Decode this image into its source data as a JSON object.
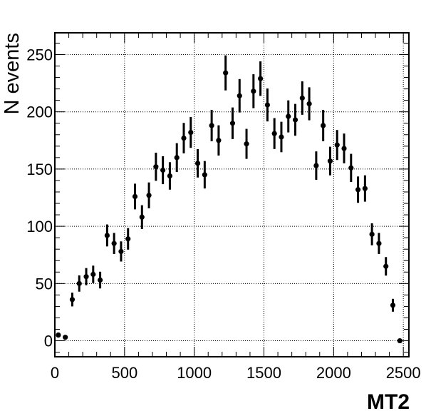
{
  "chart_data": {
    "type": "scatter",
    "xlabel": "MT2",
    "ylabel": "N events",
    "xlim": [
      0,
      2540
    ],
    "ylim": [
      -14,
      269
    ],
    "grid": true,
    "x_ticks": [
      0,
      500,
      1000,
      1500,
      2000,
      2500
    ],
    "x_tick_labels": [
      "0",
      "500",
      "1000",
      "1500",
      "2000",
      "2500"
    ],
    "y_ticks": [
      0,
      50,
      100,
      150,
      200,
      250
    ],
    "y_tick_labels": [
      "0",
      "50",
      "100",
      "150",
      "200",
      "250"
    ],
    "marker_color": "#000000",
    "series": [
      {
        "x": [
          25,
          75,
          125,
          175,
          225,
          275,
          325,
          375,
          425,
          475,
          525,
          575,
          625,
          675,
          725,
          775,
          825,
          875,
          925,
          975,
          1025,
          1075,
          1125,
          1175,
          1225,
          1275,
          1325,
          1375,
          1425,
          1475,
          1525,
          1575,
          1625,
          1675,
          1725,
          1775,
          1825,
          1875,
          1925,
          1975,
          2025,
          2075,
          2125,
          2175,
          2225,
          2275,
          2325,
          2375,
          2425,
          2475
        ],
        "y": [
          5,
          3,
          36,
          50,
          56,
          58,
          53,
          92,
          85,
          78,
          89,
          126,
          108,
          127,
          152,
          149,
          144,
          160,
          177,
          182,
          155,
          145,
          188,
          175,
          234,
          190,
          214,
          172,
          218,
          229,
          206,
          181,
          178,
          196,
          193,
          212,
          207,
          153,
          188,
          157,
          171,
          168,
          151,
          132,
          133,
          93,
          85,
          65,
          31,
          0
        ],
        "err": [
          2.2,
          1.7,
          6,
          7.1,
          7.5,
          7.6,
          7.3,
          9.6,
          9.2,
          8.8,
          9.4,
          11.2,
          10.4,
          11.3,
          12.3,
          12.2,
          12,
          12.6,
          13.3,
          13.5,
          12.4,
          12,
          13.7,
          13.2,
          15.3,
          13.8,
          14.6,
          13.1,
          14.8,
          15.1,
          14.4,
          13.5,
          13.3,
          14,
          13.9,
          14.6,
          14.4,
          12.4,
          13.7,
          12.5,
          13.1,
          13,
          12.3,
          11.5,
          11.5,
          9.6,
          9.2,
          8.1,
          5.6,
          0
        ]
      }
    ]
  }
}
